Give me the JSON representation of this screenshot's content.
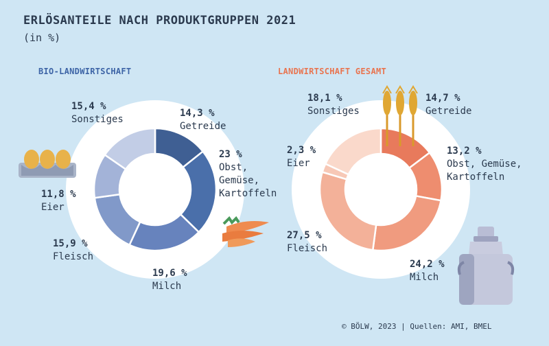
{
  "title": "ERLÖSANTEILE NACH PRODUKTGRUPPEN 2021",
  "subtitle": "(in %)",
  "source": "© BÖLW, 2023 | Quellen: AMI, BMEL",
  "chart_data": [
    {
      "type": "pie",
      "title": "BIO-LANDWIRTSCHAFT",
      "title_color": "#3d64a6",
      "categories": [
        "Getreide",
        "Obst, Gemüse, Kartoffeln",
        "Milch",
        "Fleisch",
        "Eier",
        "Sonstiges"
      ],
      "values": [
        14.3,
        23,
        19.6,
        15.9,
        11.8,
        15.4
      ],
      "value_labels": [
        "14,3 %",
        "23 %",
        "19,6 %",
        "15,9 %",
        "11,8 %",
        "15,4 %"
      ],
      "label_lines": [
        [
          "Getreide"
        ],
        [
          "Obst,",
          "Gemüse,",
          "Kartoffeln"
        ],
        [
          "Milch"
        ],
        [
          "Fleisch"
        ],
        [
          "Eier"
        ],
        [
          "Sonstiges"
        ]
      ],
      "colors": [
        "#3f5f93",
        "#4a6faa",
        "#6783bd",
        "#8199c9",
        "#a3b3d8",
        "#c2cde6"
      ]
    },
    {
      "type": "pie",
      "title": "LANDWIRTSCHAFT GESAMT",
      "title_color": "#e9744f",
      "categories": [
        "Getreide",
        "Obst, Gemüse, Kartoffeln",
        "Milch",
        "Fleisch",
        "Eier",
        "Sonstiges"
      ],
      "values": [
        14.7,
        13.2,
        24.2,
        27.5,
        2.3,
        18.1
      ],
      "value_labels": [
        "14,7 %",
        "13,2 %",
        "24,2 %",
        "27,5 %",
        "2,3 %",
        "18,1 %"
      ],
      "label_lines": [
        [
          "Getreide"
        ],
        [
          "Obst, Gemüse,",
          "Kartoffeln"
        ],
        [
          "Milch"
        ],
        [
          "Fleisch"
        ],
        [
          "Eier"
        ],
        [
          "Sonstiges"
        ]
      ],
      "colors": [
        "#e87a5c",
        "#ee8d6f",
        "#f09b7f",
        "#f3b199",
        "#f7c8b6",
        "#fad9cb"
      ]
    }
  ]
}
